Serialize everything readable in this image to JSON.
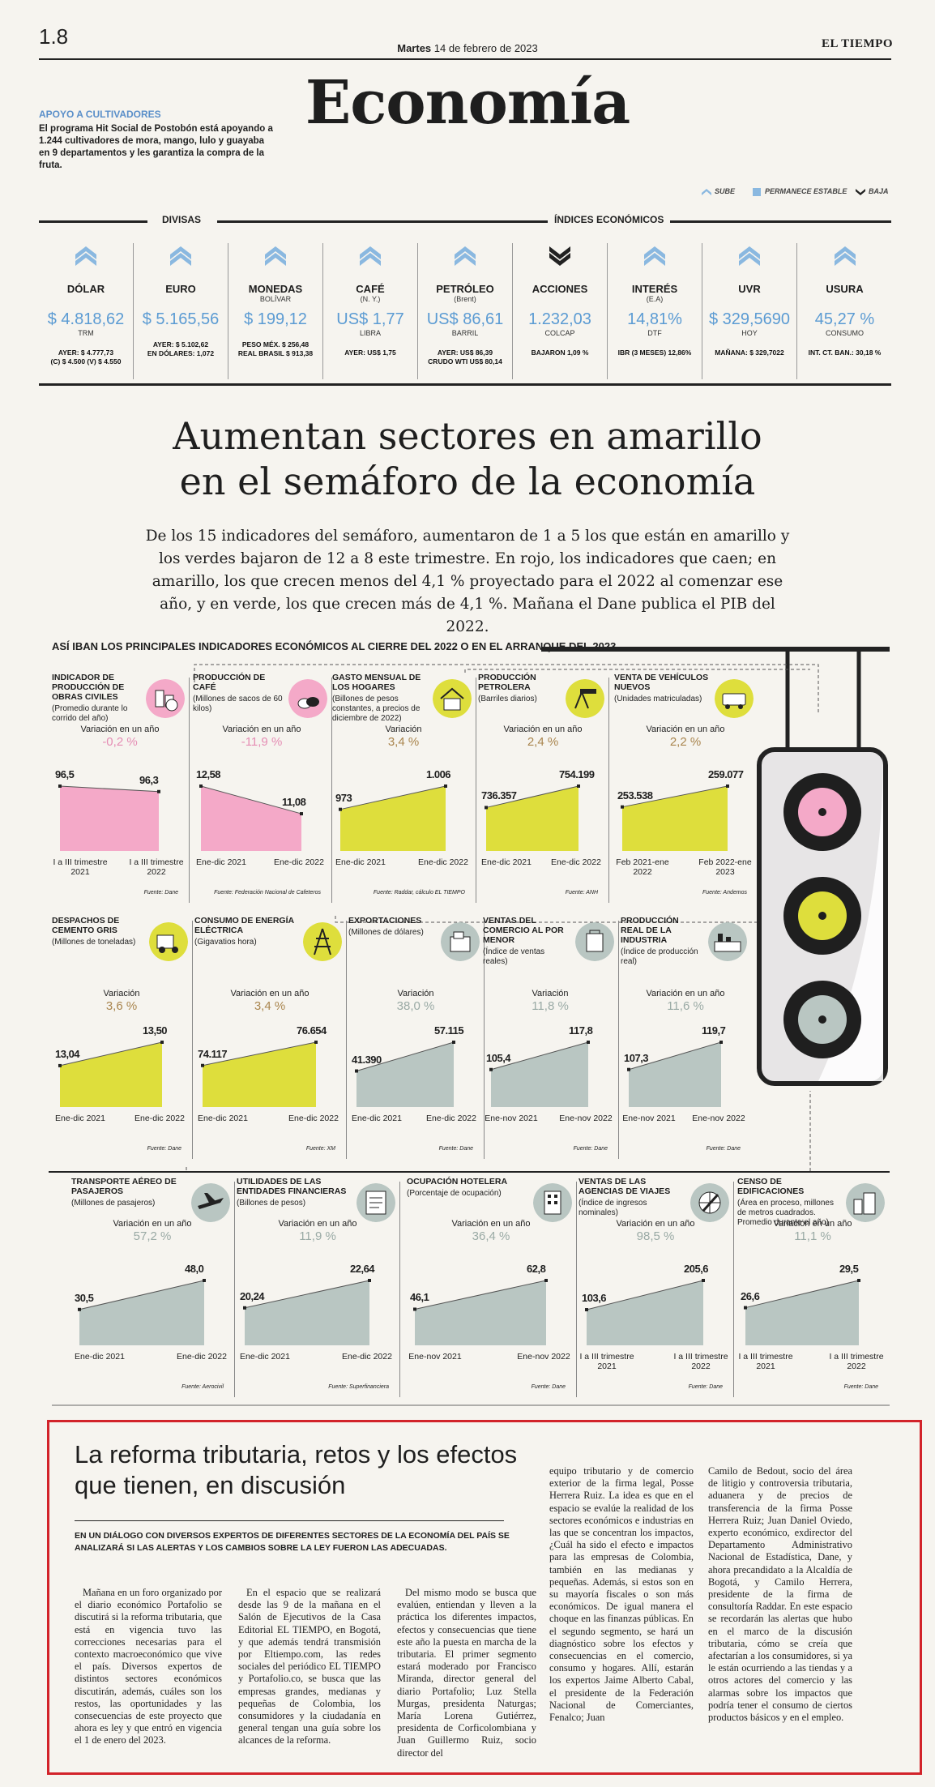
{
  "header": {
    "page_number": "1.8",
    "date_day": "Martes",
    "date_rest": "14 de febrero de 2023",
    "brand": "EL TIEMPO",
    "section": "Economía"
  },
  "promo": {
    "title": "APOYO A CULTIVADORES",
    "body": "El programa Hit Social de Postobón está apoyando a 1.244 cultivadores de mora, mango, lulo y guayaba en 9 departamentos y les garantiza la compra de la fruta."
  },
  "legend": {
    "up": "SUBE",
    "stable": "PERMANECE ESTABLE",
    "down": "BAJA"
  },
  "indices": {
    "label_divisas": "DIVISAS",
    "label_indices": "ÍNDICES ECONÓMICOS",
    "items": [
      {
        "name": "DÓLAR",
        "sub": "",
        "value": "$ 4.818,62",
        "unit": "TRM",
        "foot1": "AYER: $ 4.777,73",
        "foot2": "(C) $ 4.500 (V) $ 4.550",
        "trend": "up"
      },
      {
        "name": "EURO",
        "sub": "",
        "value": "$ 5.165,56",
        "unit": "",
        "foot1": "AYER: $ 5.102,62",
        "foot2": "EN DÓLARES: 1,072",
        "trend": "up"
      },
      {
        "name": "MONEDAS",
        "sub": "BOLÍVAR",
        "value": "$ 199,12",
        "unit": "",
        "foot1": "PESO MÉX. $ 256,48",
        "foot2": "REAL BRASIL $ 913,38",
        "trend": "up"
      },
      {
        "name": "CAFÉ",
        "sub": "(N. Y.)",
        "value": "US$ 1,77",
        "unit": "LIBRA",
        "foot1": "AYER: US$ 1,75",
        "foot2": "",
        "trend": "up"
      },
      {
        "name": "PETRÓLEO",
        "sub": "(Brent)",
        "value": "US$ 86,61",
        "unit": "BARRIL",
        "foot1": "AYER: US$ 86,39",
        "foot2": "CRUDO WTI US$ 80,14",
        "trend": "up"
      },
      {
        "name": "ACCIONES",
        "sub": "",
        "value": "1.232,03",
        "unit": "COLCAP",
        "foot1": "BAJARON 1,09 %",
        "foot2": "",
        "trend": "down"
      },
      {
        "name": "INTERÉS",
        "sub": "(E.A)",
        "value": "14,81%",
        "unit": "DTF",
        "foot1": "IBR (3 MESES) 12,86%",
        "foot2": "",
        "trend": "up"
      },
      {
        "name": "UVR",
        "sub": "",
        "value": "$ 329,5690",
        "unit": "HOY",
        "foot1": "MAÑANA: $ 329,7022",
        "foot2": "",
        "trend": "up"
      },
      {
        "name": "USURA",
        "sub": "",
        "value": "45,27 %",
        "unit": "CONSUMO",
        "foot1": "INT. CT. BAN.: 30,18 %",
        "foot2": "",
        "trend": "up"
      }
    ]
  },
  "headline": {
    "line1": "Aumentan sectores en amarillo",
    "line2": "en el semáforo de la economía",
    "deck": "De los 15 indicadores del semáforo, aumentaron de 1 a 5 los que están en amarillo y los verdes bajaron de 12 a 8 este trimestre. En rojo, los indicadores que caen; en amarillo, los que crecen menos del 4,1 % proyectado para el 2022 al comenzar ese año, y en verde, los que crecen más de 4,1 %. Mañana el Dane publica el PIB del 2022."
  },
  "infographic": {
    "title": "ASÍ IBAN LOS PRINCIPALES INDICADORES ECONÓMICOS AL CIERRE DEL 2022 O EN EL ARRANQUE DEL 2023",
    "colors": {
      "red": "#f4a9c8",
      "yellow": "#dede3c",
      "green": "#b9c6c2"
    },
    "panels": [
      {
        "title": "INDICADOR DE PRODUCCIÓN DE OBRAS CIVILES",
        "sub": "(Promedio durante lo corrido del año)",
        "var_label": "Variación en un año",
        "var": "-0,2 %",
        "v1": "96,5",
        "v2": "96,3",
        "n1": 96.5,
        "n2": 96.3,
        "x1": "I a III trimestre 2021",
        "x2": "I a III trimestre 2022",
        "source": "Fuente: Dane",
        "color": "red"
      },
      {
        "title": "PRODUCCIÓN DE CAFÉ",
        "sub": "(Millones de sacos de 60 kilos)",
        "var_label": "Variación en un año",
        "var": "-11,9 %",
        "v1": "12,58",
        "v2": "11,08",
        "n1": 12.58,
        "n2": 11.08,
        "x1": "Ene-dic 2021",
        "x2": "Ene-dic 2022",
        "source": "Fuente: Federación Nacional de Cafeteros",
        "color": "red"
      },
      {
        "title": "GASTO MENSUAL DE LOS HOGARES",
        "sub": "(Billones de pesos constantes, a precios de diciembre de 2022)",
        "var_label": "Variación",
        "var": "3,4 %",
        "v1": "973",
        "v2": "1.006",
        "n1": 973,
        "n2": 1006,
        "x1": "Ene-dic 2021",
        "x2": "Ene-dic 2022",
        "source": "Fuente: Raddar, cálculo EL TIEMPO",
        "color": "yellow"
      },
      {
        "title": "PRODUCCIÓN PETROLERA",
        "sub": "(Barriles diarios)",
        "var_label": "Variación en un año",
        "var": "2,4 %",
        "v1": "736.357",
        "v2": "754.199",
        "n1": 736357,
        "n2": 754199,
        "x1": "Ene-dic 2021",
        "x2": "Ene-dic 2022",
        "source": "Fuente: ANH",
        "color": "yellow"
      },
      {
        "title": "VENTA DE VEHÍCULOS NUEVOS",
        "sub": "(Unidades matriculadas)",
        "var_label": "Variación en un año",
        "var": "2,2 %",
        "v1": "253.538",
        "v2": "259.077",
        "n1": 253538,
        "n2": 259077,
        "x1": "Feb 2021-ene 2022",
        "x2": "Feb 2022-ene 2023",
        "source": "Fuente: Andemos",
        "color": "yellow"
      },
      {
        "title": "DESPACHOS DE CEMENTO GRIS",
        "sub": "(Millones de toneladas)",
        "var_label": "Variación",
        "var": "3,6 %",
        "v1": "13,04",
        "v2": "13,50",
        "n1": 13.04,
        "n2": 13.5,
        "x1": "Ene-dic 2021",
        "x2": "Ene-dic 2022",
        "source": "Fuente: Dane",
        "color": "yellow"
      },
      {
        "title": "CONSUMO DE ENERGÍA ELÉCTRICA",
        "sub": "(Gigavatios hora)",
        "var_label": "Variación en un año",
        "var": "3,4 %",
        "v1": "74.117",
        "v2": "76.654",
        "n1": 74117,
        "n2": 76654,
        "x1": "Ene-dic 2021",
        "x2": "Ene-dic 2022",
        "source": "Fuente: XM",
        "color": "yellow"
      },
      {
        "title": "EXPORTACIONES",
        "sub": "(Millones de dólares)",
        "var_label": "Variación",
        "var": "38,0 %",
        "v1": "41.390",
        "v2": "57.115",
        "n1": 41390,
        "n2": 57115,
        "x1": "Ene-dic 2021",
        "x2": "Ene-dic 2022",
        "source": "Fuente: Dane",
        "color": "green"
      },
      {
        "title": "VENTAS DEL COMERCIO AL POR MENOR",
        "sub": "(Índice de ventas reales)",
        "var_label": "Variación",
        "var": "11,8 %",
        "v1": "105,4",
        "v2": "117,8",
        "n1": 105.4,
        "n2": 117.8,
        "x1": "Ene-nov 2021",
        "x2": "Ene-nov 2022",
        "source": "Fuente: Dane",
        "color": "green"
      },
      {
        "title": "PRODUCCIÓN REAL DE LA INDUSTRIA",
        "sub": "(Índice de producción real)",
        "var_label": "Variación en un año",
        "var": "11,6 %",
        "v1": "107,3",
        "v2": "119,7",
        "n1": 107.3,
        "n2": 119.7,
        "x1": "Ene-nov 2021",
        "x2": "Ene-nov 2022",
        "source": "Fuente: Dane",
        "color": "green"
      },
      {
        "title": "TRANSPORTE AÉREO DE PASAJEROS",
        "sub": "(Millones de pasajeros)",
        "var_label": "Variación en un año",
        "var": "57,2 %",
        "v1": "30,5",
        "v2": "48,0",
        "n1": 30.5,
        "n2": 48.0,
        "x1": "Ene-dic 2021",
        "x2": "Ene-dic 2022",
        "source": "Fuente: Aerocivil",
        "color": "green"
      },
      {
        "title": "UTILIDADES DE LAS ENTIDADES FINANCIERAS",
        "sub": "(Billones de pesos)",
        "var_label": "Variación en un año",
        "var": "11,9 %",
        "v1": "20,24",
        "v2": "22,64",
        "n1": 20.24,
        "n2": 22.64,
        "x1": "Ene-dic 2021",
        "x2": "Ene-dic 2022",
        "source": "Fuente: Superfinanciera",
        "color": "green"
      },
      {
        "title": "OCUPACIÓN HOTELERA",
        "sub": "(Porcentaje de ocupación)",
        "var_label": "Variación en un año",
        "var": "36,4 %",
        "v1": "46,1",
        "v2": "62,8",
        "n1": 46.1,
        "n2": 62.8,
        "x1": "Ene-nov 2021",
        "x2": "Ene-nov 2022",
        "source": "Fuente: Dane",
        "color": "green"
      },
      {
        "title": "VENTAS DE LAS AGENCIAS DE VIAJES",
        "sub": "(Índice de ingresos nominales)",
        "var_label": "Variación en un año",
        "var": "98,5 %",
        "v1": "103,6",
        "v2": "205,6",
        "n1": 103.6,
        "n2": 205.6,
        "x1": "I a III trimestre 2021",
        "x2": "I a III trimestre 2022",
        "source": "Fuente: Dane",
        "color": "green"
      },
      {
        "title": "CENSO DE EDIFICACIONES",
        "sub": "(Área en proceso, millones de metros cuadrados. Promedio durante el año)",
        "var_label": "Variación en un año",
        "var": "11,1 %",
        "v1": "26,6",
        "v2": "29,5",
        "n1": 26.6,
        "n2": 29.5,
        "x1": "I a III trimestre 2021",
        "x2": "I a III trimestre 2022",
        "source": "Fuente: Dane",
        "color": "green"
      }
    ]
  },
  "article": {
    "title": "La reforma tributaria, retos y los efectos que tienen, en discusión",
    "kicker": "EN UN DIÁLOGO CON DIVERSOS EXPERTOS DE DIFERENTES SECTORES DE LA ECONOMÍA DEL PAÍS SE ANALIZARÁ SI LAS ALERTAS Y LOS CAMBIOS SOBRE LA LEY FUERON LAS ADECUADAS.",
    "col1": "Mañana en un foro organizado por el diario económico Portafolio se discutirá si la reforma tributaria, que está en vigencia tuvo las correcciones necesarias para el contexto macroeconómico que vive el país. Diversos expertos de distintos sectores económicos discutirán, además, cuáles son los restos, las oportunidades y las consecuencias de este proyecto que ahora es ley y que entró en vigencia el 1 de enero del 2023.",
    "col2": "En el espacio que se realizará desde las 9 de la mañana en el Salón de Ejecutivos de la Casa Editorial EL TIEMPO, en Bogotá, y que además tendrá transmisión por Eltiempo.com, las redes sociales del periódico EL TIEMPO y Portafolio.co, se busca que las empresas grandes, medianas y pequeñas de Colombia, los consumidores y la ciudadanía en general tengan una guía sobre los alcances de la reforma.",
    "col3": "Del mismo modo se busca que evalúen, entiendan y lleven a la práctica los diferentes impactos, efectos y consecuencias que tiene este año la puesta en marcha de la tributaria. El primer segmento estará moderado por Francisco Miranda, director general del diario Portafolio; Luz Stella Murgas, presidenta Naturgas; María Lorena Gutiérrez, presidenta de Corficolombiana y Juan Guillermo Ruiz, socio director del",
    "col4": "equipo tributario y de comercio exterior de la firma legal, Posse Herrera Ruiz. La idea es que en el espacio se evalúe la realidad de los sectores económicos e industrias en las que se concentran los impactos, ¿Cuál ha sido el efecto e impactos para las empresas de Colombia, también en las medianas y pequeñas. Además, si estos son en su mayoría fiscales o son más económicos. De igual manera el choque en las finanzas públicas. En el segundo segmento, se hará un diagnóstico sobre los efectos y consecuencias en el comercio, consumo y hogares. Allí, estarán los expertos Jaime Alberto Cabal, el presidente de la Federación Nacional de Comerciantes, Fenalco; Juan",
    "col5": "Camilo de Bedout, socio del área de litigio y controversia tributaria, aduanera y de precios de transferencia de la firma Posse Herrera Ruiz; Juan Daniel Oviedo, experto económico, exdirector del Departamento Administrativo Nacional de Estadística, Dane, y ahora precandidato a la Alcaldía de Bogotá, y Camilo Herrera, presidente de la firma de consultoría Raddar. En este espacio se recordarán las alertas que hubo en el marco de la discusión tributaria, cómo se creía que afectarían a los consumidores, si ya le están ocurriendo a las tiendas y a otros actores del comercio y las alarmas sobre los impactos que podría tener el consumo de ciertos productos básicos y en el empleo."
  }
}
